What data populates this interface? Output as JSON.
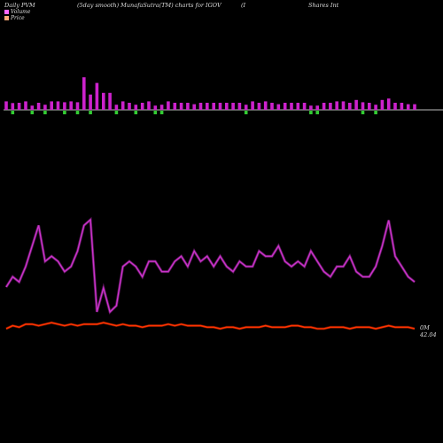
{
  "header": {
    "left": "Daily PVM",
    "middle": "(5day smooth) MunafaSutra(TM) charts for IGOV",
    "right_a": "(I",
    "right_b": "Shares Int"
  },
  "legend": [
    {
      "label": "Volume",
      "color": "#ff66ff"
    },
    {
      "label": "Price",
      "color": "#ffaa77"
    }
  ],
  "colors": {
    "up": "#cc22cc",
    "down": "#33cc33",
    "volume_line": "#cc33cc",
    "price_line": "#ff3300",
    "baseline": "#bbbbbb"
  },
  "end_labels": {
    "volume": "0M",
    "price": "42.04"
  },
  "chart_data": {
    "type": "bar+line",
    "series": [
      {
        "name": "Volume",
        "type": "bar",
        "values": [
          6,
          8,
          5,
          6,
          5,
          5,
          6,
          6,
          6,
          9,
          6,
          9,
          23,
          18,
          19,
          12,
          12,
          6,
          6,
          5,
          6,
          5,
          6,
          5,
          6,
          6,
          5,
          5,
          5,
          4,
          5,
          5,
          5,
          5,
          5,
          5,
          5,
          6,
          6,
          5,
          6,
          5,
          4,
          5,
          5,
          5,
          5,
          5,
          5,
          5,
          5,
          6,
          6,
          5,
          7,
          9,
          5,
          6,
          7,
          8,
          5,
          5,
          4,
          4
        ],
        "direction": [
          "u",
          "d",
          "u",
          "u",
          "d",
          "u",
          "d",
          "u",
          "u",
          "d",
          "u",
          "d",
          "u",
          "d",
          "u",
          "u",
          "u",
          "d",
          "u",
          "u",
          "d",
          "u",
          "u",
          "d",
          "d",
          "u",
          "u",
          "u",
          "u",
          "u",
          "u",
          "u",
          "u",
          "u",
          "u",
          "u",
          "u",
          "d",
          "u",
          "u",
          "u",
          "u",
          "u",
          "u",
          "u",
          "u",
          "u",
          "d",
          "d",
          "u",
          "u",
          "u",
          "u",
          "u",
          "u",
          "d",
          "u",
          "d",
          "u",
          "u",
          "u",
          "u",
          "u",
          "u"
        ]
      },
      {
        "name": "Volume",
        "type": "line",
        "values": [
          10,
          12,
          11,
          14,
          18,
          22,
          15,
          16,
          15,
          13,
          14,
          17,
          22,
          19,
          14,
          15,
          14,
          16,
          14,
          15,
          14,
          12,
          15,
          15,
          13,
          13,
          15,
          16,
          14,
          17,
          15,
          16,
          14,
          16,
          14,
          13,
          15,
          14,
          14,
          17,
          16,
          16,
          18,
          15,
          14,
          15,
          14,
          17,
          15,
          13,
          12,
          14,
          14,
          16,
          13,
          12,
          12,
          14,
          18,
          23,
          16,
          14,
          12,
          11
        ]
      },
      {
        "name": "Price",
        "type": "line",
        "values": [
          10,
          12,
          11,
          13,
          13,
          12,
          13,
          14,
          13,
          12,
          13,
          12,
          13,
          13,
          13,
          14,
          13,
          12,
          13,
          12,
          12,
          11,
          12,
          12,
          12,
          13,
          12,
          13,
          12,
          12,
          12,
          11,
          11,
          10,
          11,
          11,
          10,
          11,
          11,
          11,
          12,
          11,
          11,
          11,
          12,
          12,
          11,
          11,
          10,
          10,
          11,
          11,
          11,
          10,
          11,
          11,
          11,
          10,
          11,
          12,
          11,
          11,
          11,
          10
        ]
      }
    ]
  }
}
